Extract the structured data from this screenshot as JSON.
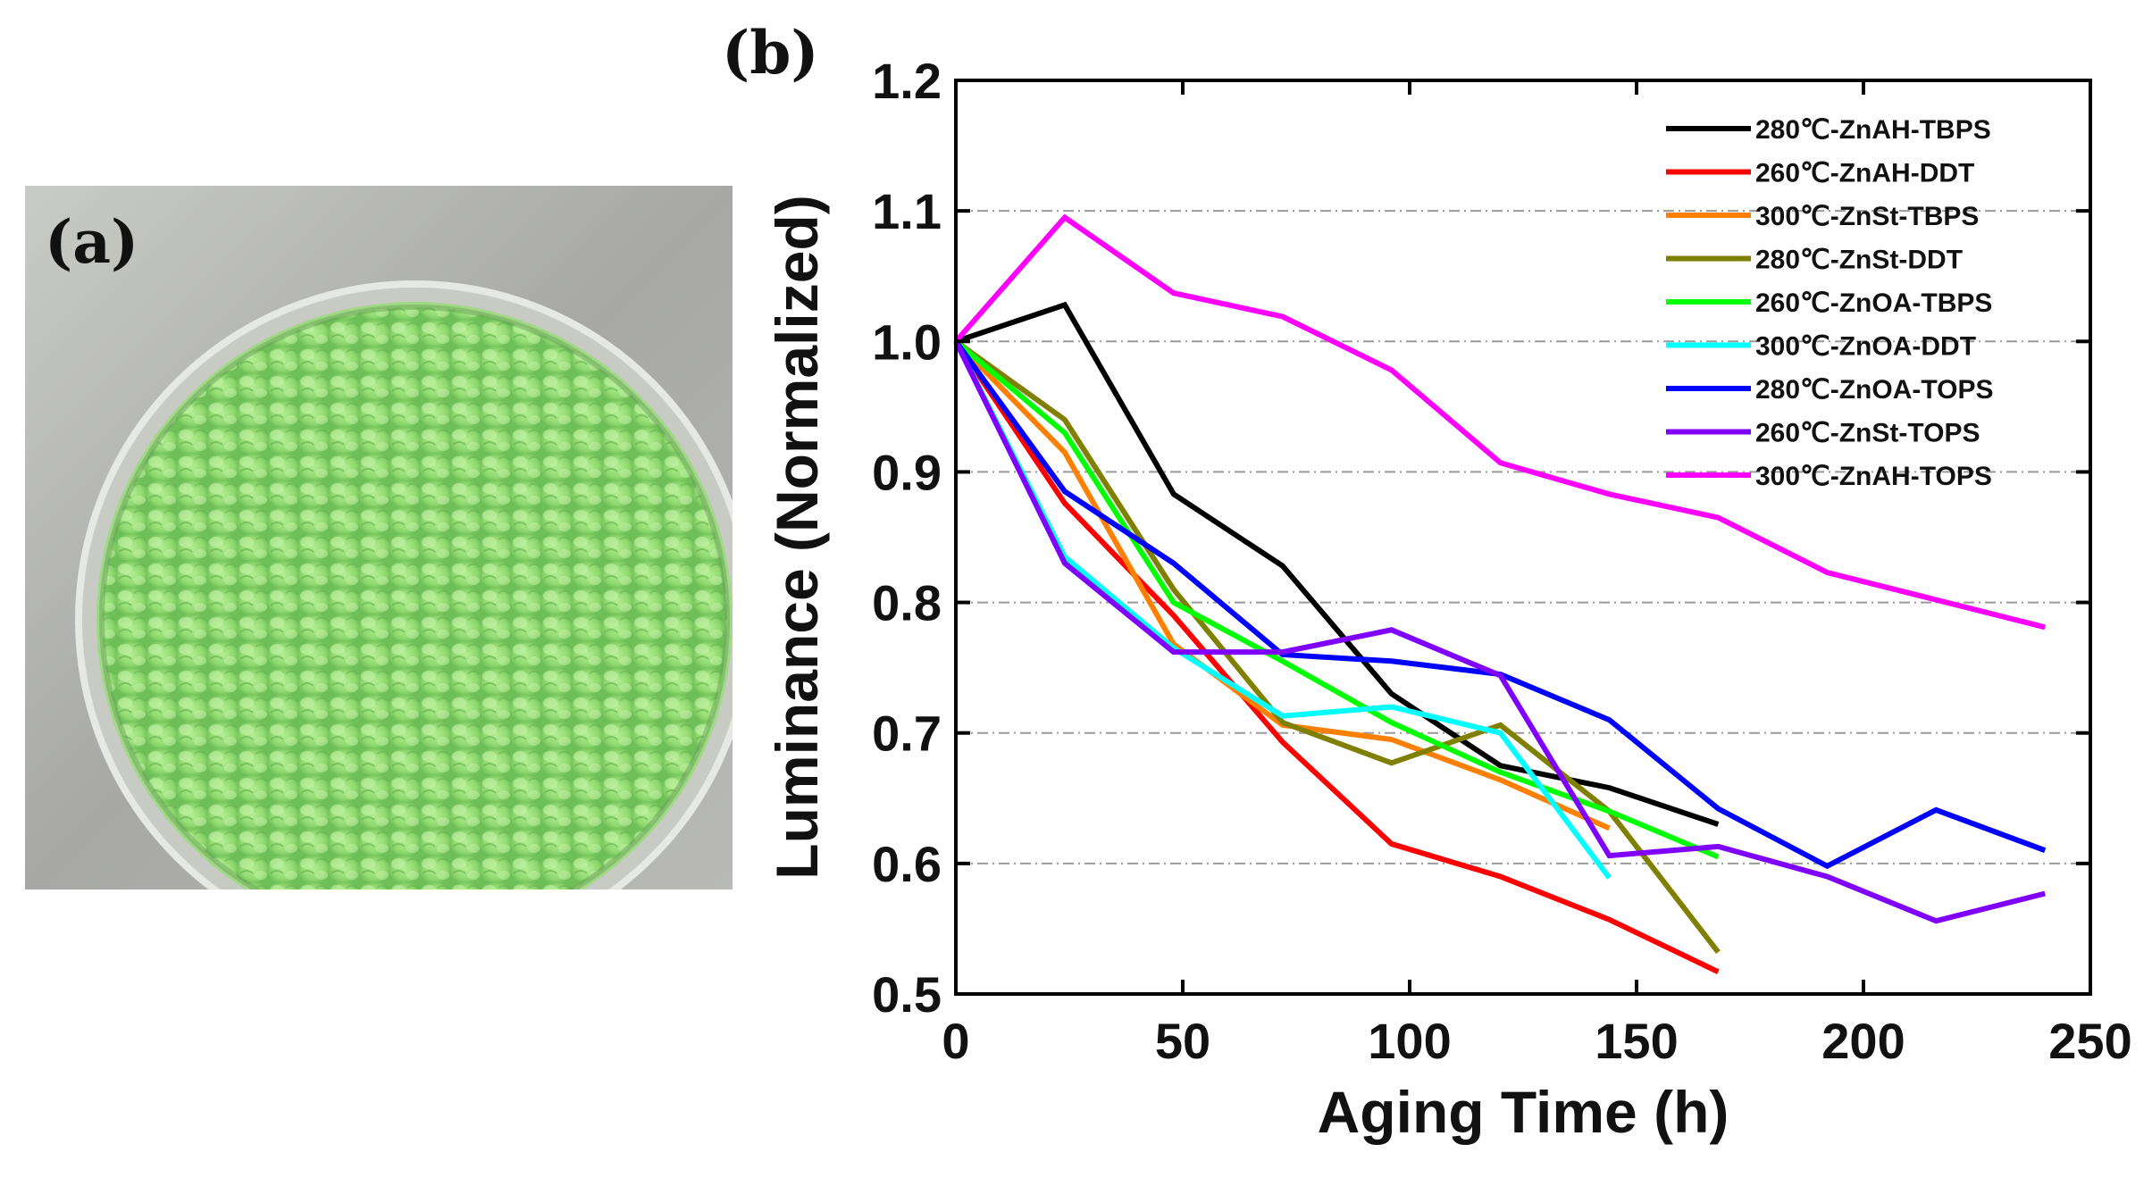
{
  "panel_a": {
    "label": "(a)",
    "photo_description_icon": "petri-dish-green-pellets-photo",
    "colors": {
      "background": "#a9aaa8",
      "pellets": "#9be07a",
      "dish_rim": "#d9dcd6"
    }
  },
  "panel_b": {
    "label": "(b)"
  },
  "chart_data": {
    "type": "line",
    "title": "",
    "xlabel": "Aging Time (h)",
    "ylabel": "Luminance (Normalized)",
    "xlim": [
      0,
      250
    ],
    "ylim": [
      0.5,
      1.2
    ],
    "x_ticks": [
      0,
      50,
      100,
      150,
      200,
      250
    ],
    "x_tick_labels": [
      "0",
      "50",
      "100",
      "150",
      "200",
      "250"
    ],
    "y_ticks": [
      0.5,
      0.6,
      0.7,
      0.8,
      0.9,
      1.0,
      1.1,
      1.2
    ],
    "y_tick_labels": [
      "0.5",
      "0.6",
      "0.7",
      "0.8",
      "0.9",
      "1.0",
      "1.1",
      "1.2"
    ],
    "grid": "horizontal dash-dot",
    "legend_position": "top-right",
    "series": [
      {
        "name": "280℃-ZnAH-TBPS",
        "color": "#000000",
        "x": [
          0,
          24,
          48,
          72,
          96,
          120,
          144,
          168
        ],
        "y": [
          1.0,
          1.028,
          0.883,
          0.828,
          0.73,
          0.675,
          0.658,
          0.63
        ]
      },
      {
        "name": "260℃-ZnAH-DDT",
        "color": "#ff0000",
        "x": [
          0,
          24,
          48,
          72,
          96,
          120,
          144,
          168
        ],
        "y": [
          1.0,
          0.876,
          0.79,
          0.693,
          0.615,
          0.59,
          0.557,
          0.517
        ]
      },
      {
        "name": "300℃-ZnSt-TBPS",
        "color": "#ff8000",
        "x": [
          0,
          24,
          48,
          72,
          96,
          120,
          144
        ],
        "y": [
          1.0,
          0.915,
          0.768,
          0.706,
          0.695,
          0.664,
          0.627
        ]
      },
      {
        "name": "280℃-ZnSt-DDT",
        "color": "#808000",
        "x": [
          0,
          24,
          48,
          72,
          96,
          120,
          144,
          168
        ],
        "y": [
          1.0,
          0.94,
          0.81,
          0.708,
          0.677,
          0.706,
          0.64,
          0.532
        ]
      },
      {
        "name": "260℃-ZnOA-TBPS",
        "color": "#00ff00",
        "x": [
          0,
          24,
          48,
          72,
          96,
          120,
          144,
          168
        ],
        "y": [
          1.0,
          0.93,
          0.8,
          0.755,
          0.708,
          0.67,
          0.64,
          0.605
        ]
      },
      {
        "name": "300℃-ZnOA-DDT",
        "color": "#00ffff",
        "x": [
          0,
          24,
          48,
          72,
          96,
          120,
          144
        ],
        "y": [
          1.0,
          0.835,
          0.765,
          0.713,
          0.72,
          0.7,
          0.589
        ]
      },
      {
        "name": "280℃-ZnOA-TOPS",
        "color": "#0000ff",
        "x": [
          0,
          24,
          48,
          72,
          96,
          120,
          144,
          168,
          192,
          216,
          240
        ],
        "y": [
          1.0,
          0.885,
          0.83,
          0.76,
          0.755,
          0.745,
          0.71,
          0.642,
          0.598,
          0.641,
          0.61
        ]
      },
      {
        "name": "260℃-ZnSt-TOPS",
        "color": "#8000ff",
        "x": [
          0,
          24,
          48,
          72,
          96,
          120,
          144,
          168,
          192,
          216,
          240
        ],
        "y": [
          1.0,
          0.83,
          0.762,
          0.762,
          0.779,
          0.744,
          0.606,
          0.613,
          0.59,
          0.556,
          0.577
        ]
      },
      {
        "name": "300℃-ZnAH-TOPS",
        "color": "#ff00ff",
        "x": [
          0,
          24,
          48,
          72,
          96,
          120,
          144,
          168,
          192,
          216,
          240
        ],
        "y": [
          1.0,
          1.095,
          1.037,
          1.019,
          0.978,
          0.907,
          0.883,
          0.865,
          0.823,
          0.802,
          0.781
        ]
      }
    ]
  }
}
